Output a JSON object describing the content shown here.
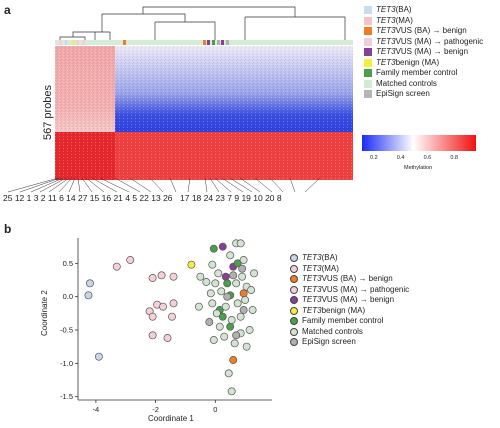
{
  "panel_a": {
    "letter": "a",
    "probes_label": "567 probes",
    "colorbar": {
      "ticks": [
        "0.2",
        "0.4",
        "0.6",
        "0.8"
      ],
      "title": "Methylation"
    },
    "sample_labels_left": "25 12 1 3 2 11 6 14 27 15 16 21 4 5 22 13 26",
    "sample_labels_right": "17 18 24 23 7 9 19 10 20 8"
  },
  "panel_b": {
    "letter": "b"
  },
  "legend_a": [
    {
      "italic": "TET3",
      "text": " (BA)",
      "color": "#c9dbef"
    },
    {
      "italic": "TET3",
      "text": " (MA)",
      "color": "#f4c4c4"
    },
    {
      "italic": "TET3",
      "text": " VUS (BA) → benign",
      "color": "#ee7d23"
    },
    {
      "italic": "TET3",
      "text": " VUS (MA) → pathogenic",
      "color": "#f1cde0"
    },
    {
      "italic": "TET3",
      "text": " VUS (MA) → benign",
      "color": "#8a3f97"
    },
    {
      "italic": "TET3",
      "text": " benign (MA)",
      "color": "#f4ef3b"
    },
    {
      "italic": "",
      "text": "Family member control",
      "color": "#4aa04a"
    },
    {
      "italic": "",
      "text": "Matched controls",
      "color": "#d3ead3"
    },
    {
      "italic": "",
      "text": "EpiSign screen",
      "color": "#b5b5b5"
    }
  ],
  "legend_b": [
    {
      "italic": "TET3",
      "text": " (BA)",
      "color": "#c9d6ea"
    },
    {
      "italic": "TET3",
      "text": " (MA)",
      "color": "#f6cfd8"
    },
    {
      "italic": "TET3",
      "text": " VUS (BA) → benign",
      "color": "#ee7d23"
    },
    {
      "italic": "TET3",
      "text": " VUS (MA) → pathogenic",
      "color": "#f1cde0"
    },
    {
      "italic": "TET3",
      "text": " VUS (MA) → benign",
      "color": "#8a3f97"
    },
    {
      "italic": "TET3",
      "text": " benign (MA)",
      "color": "#f4ef3b"
    },
    {
      "italic": "",
      "text": "Family member control",
      "color": "#4aa04a"
    },
    {
      "italic": "",
      "text": "Matched controls",
      "color": "#d3e4d3"
    },
    {
      "italic": "",
      "text": "EpiSign screen",
      "color": "#b0b0b0"
    }
  ],
  "chart_data": {
    "type": "scatter",
    "xlabel": "Coordinate 1",
    "ylabel": "Coordinate 2",
    "xlim": [
      -4.6,
      1.9
    ],
    "ylim": [
      -1.55,
      0.88
    ],
    "xticks": [
      "-4",
      "-2",
      "0"
    ],
    "yticks": [
      "0.5",
      "0.0",
      "-0.5",
      "-1.0",
      "-1.5"
    ],
    "xtick_values": [
      -4,
      -2,
      0
    ],
    "ytick_values": [
      0.5,
      0.0,
      -0.5,
      -1.0,
      -1.5
    ],
    "series": [
      {
        "name": "TET3 (BA)",
        "color": "#c9d6ea",
        "points": [
          [
            -4.2,
            0.2
          ],
          [
            -4.25,
            0.02
          ],
          [
            -3.9,
            -0.9
          ]
        ]
      },
      {
        "name": "TET3 (MA)",
        "color": "#f6cfd8",
        "points": [
          [
            -3.3,
            0.45
          ],
          [
            -2.85,
            0.55
          ],
          [
            -2.1,
            0.28
          ],
          [
            -1.8,
            0.32
          ],
          [
            -1.4,
            0.3
          ],
          [
            -1.95,
            -0.12
          ],
          [
            -1.75,
            -0.15
          ],
          [
            -1.4,
            -0.1
          ],
          [
            -2.2,
            -0.22
          ],
          [
            -2.1,
            -0.3
          ],
          [
            -1.45,
            -0.3
          ],
          [
            -1.6,
            -0.62
          ]
        ]
      },
      {
        "name": "TET3 VUS (BA) → benign",
        "color": "#ee7d23",
        "points": [
          [
            0.95,
            0.05
          ],
          [
            0.6,
            -0.95
          ]
        ]
      },
      {
        "name": "TET3 VUS (MA) → pathogenic",
        "color": "#f1cde0",
        "points": [
          [
            -2.1,
            -0.58
          ]
        ]
      },
      {
        "name": "TET3 VUS (MA) → benign",
        "color": "#8a3f97",
        "points": [
          [
            0.25,
            0.75
          ],
          [
            0.35,
            0.3
          ],
          [
            0.6,
            0.45
          ]
        ]
      },
      {
        "name": "TET3 benign (MA)",
        "color": "#f4ef3b",
        "points": [
          [
            -0.8,
            0.48
          ]
        ]
      },
      {
        "name": "Family member control",
        "color": "#4aa04a",
        "points": [
          [
            -0.05,
            0.72
          ],
          [
            0.4,
            0.2
          ],
          [
            0.75,
            0.5
          ],
          [
            0.5,
            0.02
          ],
          [
            0.25,
            -0.3
          ],
          [
            0.15,
            -0.2
          ],
          [
            0.5,
            -0.45
          ]
        ]
      },
      {
        "name": "Matched controls",
        "color": "#d3e4d3",
        "points": [
          [
            0.7,
            0.8
          ],
          [
            0.85,
            0.8
          ],
          [
            0.95,
            0.55
          ],
          [
            0.5,
            0.62
          ],
          [
            1.3,
            0.35
          ],
          [
            0.9,
            0.3
          ],
          [
            0.7,
            0.2
          ],
          [
            1.05,
            0.15
          ],
          [
            -0.1,
            0.48
          ],
          [
            0.1,
            0.35
          ],
          [
            0.0,
            0.2
          ],
          [
            -0.3,
            0.22
          ],
          [
            -0.5,
            0.3
          ],
          [
            -0.15,
            0.05
          ],
          [
            0.2,
            0.08
          ],
          [
            1.2,
            0.1
          ],
          [
            -0.55,
            -0.15
          ],
          [
            -0.1,
            -0.1
          ],
          [
            0.05,
            -0.25
          ],
          [
            0.35,
            -0.15
          ],
          [
            0.75,
            -0.1
          ],
          [
            1.0,
            -0.05
          ],
          [
            1.25,
            -0.2
          ],
          [
            0.15,
            -0.45
          ],
          [
            0.55,
            -0.35
          ],
          [
            0.85,
            -0.3
          ],
          [
            -0.05,
            -0.65
          ],
          [
            0.3,
            -0.6
          ],
          [
            0.85,
            -0.55
          ],
          [
            1.15,
            -0.5
          ],
          [
            0.65,
            -0.7
          ],
          [
            1.05,
            -0.75
          ],
          [
            0.45,
            -1.15
          ],
          [
            0.55,
            -1.42
          ]
        ]
      },
      {
        "name": "EpiSign screen",
        "color": "#b0b0b0",
        "points": [
          [
            0.6,
            0.32
          ],
          [
            0.9,
            0.42
          ],
          [
            0.4,
            0.0
          ],
          [
            -0.2,
            -0.38
          ],
          [
            0.7,
            -0.58
          ],
          [
            0.95,
            -0.2
          ]
        ]
      }
    ]
  }
}
